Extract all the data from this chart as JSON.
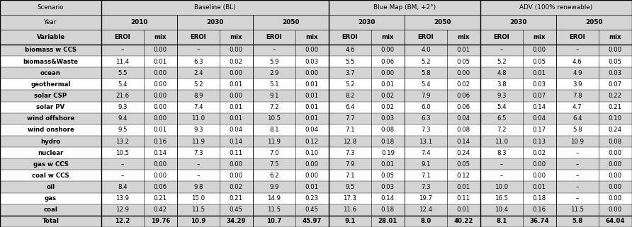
{
  "col_widths_raw": [
    1.15,
    0.48,
    0.38,
    0.48,
    0.38,
    0.48,
    0.38,
    0.48,
    0.38,
    0.48,
    0.38,
    0.48,
    0.38,
    0.48,
    0.38
  ],
  "rows": [
    [
      "biomass w CCS",
      "–",
      "0.00",
      "–",
      "0.00",
      "–",
      "0.00",
      "4.6",
      "0.00",
      "4.0",
      "0.01",
      "–",
      "0.00",
      "–",
      "0.00"
    ],
    [
      "biomass&Waste",
      "11.4",
      "0.01",
      "6.3",
      "0.02",
      "5.9",
      "0.03",
      "5.5",
      "0.06",
      "5.2",
      "0.05",
      "5.2",
      "0.05",
      "4.6",
      "0.05"
    ],
    [
      "ocean",
      "5.5",
      "0.00",
      "2.4",
      "0.00",
      "2.9",
      "0.00",
      "3.7",
      "0.00",
      "5.8",
      "0.00",
      "4.8",
      "0.01",
      "4.9",
      "0.03"
    ],
    [
      "geothermal",
      "5.4",
      "0.00",
      "5.2",
      "0.01",
      "5.1",
      "0.01",
      "5.2",
      "0.01",
      "5.4",
      "0.02",
      "3.8",
      "0.03",
      "3.9",
      "0.07"
    ],
    [
      "solar CSP",
      "21.6",
      "0.00",
      "8.9",
      "0.00",
      "9.1",
      "0.01",
      "8.2",
      "0.02",
      "7.9",
      "0.06",
      "9.3",
      "0.07",
      "7.8",
      "0.22"
    ],
    [
      "solar PV",
      "9.3",
      "0.00",
      "7.4",
      "0.01",
      "7.2",
      "0.01",
      "6.4",
      "0.02",
      "6.0",
      "0.06",
      "5.4",
      "0.14",
      "4.7",
      "0.21"
    ],
    [
      "wind offshore",
      "9.4",
      "0.00",
      "11.0",
      "0.01",
      "10.5",
      "0.01",
      "7.7",
      "0.03",
      "6.3",
      "0.04",
      "6.5",
      "0.04",
      "6.4",
      "0.10"
    ],
    [
      "wind onshore",
      "9.5",
      "0.01",
      "9.3",
      "0.04",
      "8.1",
      "0.04",
      "7.1",
      "0.08",
      "7.3",
      "0.08",
      "7.2",
      "0.17",
      "5.8",
      "0.24"
    ],
    [
      "hydro",
      "13.2",
      "0.16",
      "11.9",
      "0.14",
      "11.9",
      "0.12",
      "12.8",
      "0.18",
      "13.1",
      "0.14",
      "11.0",
      "0.13",
      "10.9",
      "0.08"
    ],
    [
      "nuclear",
      "10.5",
      "0.14",
      "7.3",
      "0.11",
      "7.0",
      "0.10",
      "7.3",
      "0.19",
      "7.4",
      "0.24",
      "8.3",
      "0.02",
      "–",
      "0.00"
    ],
    [
      "gas w CCS",
      "–",
      "0.00",
      "–",
      "0.00",
      "7.5",
      "0.00",
      "7.9",
      "0.01",
      "9.1",
      "0.05",
      "–",
      "0.00",
      "–",
      "0.00"
    ],
    [
      "coal w CCS",
      "–",
      "0.00",
      "–",
      "0.00",
      "6.2",
      "0.00",
      "7.1",
      "0.05",
      "7.1",
      "0.12",
      "–",
      "0.00",
      "–",
      "0.00"
    ],
    [
      "oil",
      "8.4",
      "0.06",
      "9.8",
      "0.02",
      "9.9",
      "0.01",
      "9.5",
      "0.03",
      "7.3",
      "0.01",
      "10.0",
      "0.01",
      "–",
      "0.00"
    ],
    [
      "gas",
      "13.9",
      "0.21",
      "15.0",
      "0.21",
      "14.9",
      "0.23",
      "17.3",
      "0.14",
      "19.7",
      "0.11",
      "16.5",
      "0.18",
      "–",
      "0.00"
    ],
    [
      "coal",
      "12.9",
      "0.42",
      "11.5",
      "0.45",
      "11.5",
      "0.45",
      "11.6",
      "0.18",
      "12.4",
      "0.01",
      "10.4",
      "0.16",
      "11.5",
      "0.00"
    ]
  ],
  "total_row": [
    "Total",
    "12.2",
    "19.76",
    "10.9",
    "34.29",
    "10.7",
    "45.97",
    "9.1",
    "28.01",
    "8.0",
    "40.22",
    "8.1",
    "36.74",
    "5.8",
    "64.04"
  ],
  "light": "#d4d4d4",
  "white": "#ffffff",
  "fontsize": 6.2,
  "hdr_fontsize": 6.4
}
